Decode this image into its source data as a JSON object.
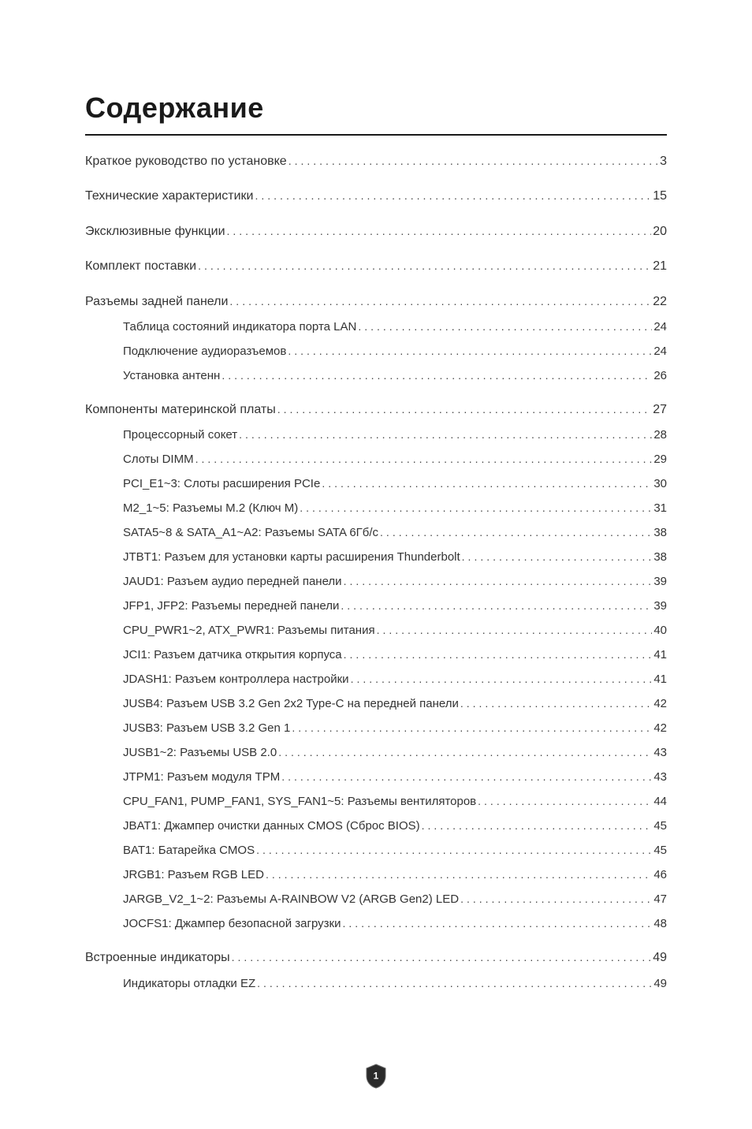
{
  "title": "Содержание",
  "pageNumber": "1",
  "colors": {
    "background": "#ffffff",
    "text": "#333333",
    "title": "#1a1a1a",
    "rule": "#1a1a1a",
    "leader": "#444444",
    "badgeFill": "#2a2a2a",
    "badgeStroke": "#6a6a6a",
    "badgeText": "#ffffff"
  },
  "typography": {
    "titleFontSize": 36,
    "titleFontWeight": 700,
    "level1FontSize": 16,
    "level2FontSize": 15,
    "level2Indent": 48
  },
  "toc": [
    {
      "level": 1,
      "label": "Краткое руководство по установке",
      "page": "3"
    },
    {
      "level": 1,
      "label": "Технические характеристики",
      "page": "15"
    },
    {
      "level": 1,
      "label": "Эксклюзивные функции",
      "page": "20"
    },
    {
      "level": 1,
      "label": "Комплект поставки",
      "page": "21"
    },
    {
      "level": 1,
      "label": "Разъемы задней панели",
      "page": "22"
    },
    {
      "level": 2,
      "label": "Таблица состояний индикатора порта LAN",
      "page": "24"
    },
    {
      "level": 2,
      "label": "Подключение аудиоразъемов",
      "page": "24"
    },
    {
      "level": 2,
      "label": "Установка антенн",
      "page": "26"
    },
    {
      "level": 1,
      "label": "Компоненты материнской платы",
      "page": "27"
    },
    {
      "level": 2,
      "label": "Процессорный сокет",
      "page": "28"
    },
    {
      "level": 2,
      "label": "Слоты DIMM",
      "page": "29"
    },
    {
      "level": 2,
      "label": "PCI_E1~3: Слоты расширения PCIe",
      "page": "30"
    },
    {
      "level": 2,
      "label": "M2_1~5: Разъемы M.2 (Ключ M)",
      "page": "31"
    },
    {
      "level": 2,
      "label": "SATA5~8 & SATA_A1~A2: Разъемы SATA 6Гб/с",
      "page": "38"
    },
    {
      "level": 2,
      "label": "JTBT1: Разъем для установки карты расширения Thunderbolt",
      "page": "38"
    },
    {
      "level": 2,
      "label": "JAUD1: Разъем аудио передней панели",
      "page": "39"
    },
    {
      "level": 2,
      "label": "JFP1, JFP2: Разъемы передней панели",
      "page": "39"
    },
    {
      "level": 2,
      "label": "CPU_PWR1~2, ATX_PWR1: Разъемы питания",
      "page": "40"
    },
    {
      "level": 2,
      "label": "JCI1: Разъем датчика открытия корпуса",
      "page": "41"
    },
    {
      "level": 2,
      "label": "JDASH1: Разъем контроллера настройки",
      "page": "41"
    },
    {
      "level": 2,
      "label": "JUSB4: Разъем USB 3.2 Gen 2x2 Type-C на передней панели",
      "page": "42"
    },
    {
      "level": 2,
      "label": "JUSB3: Разъем USB 3.2 Gen 1",
      "page": "42"
    },
    {
      "level": 2,
      "label": "JUSB1~2: Разъемы USB 2.0",
      "page": "43"
    },
    {
      "level": 2,
      "label": "JTPM1: Разъем модуля TPM",
      "page": "43"
    },
    {
      "level": 2,
      "label": "CPU_FAN1, PUMP_FAN1, SYS_FAN1~5: Разъемы вентиляторов",
      "page": "44"
    },
    {
      "level": 2,
      "label": "JBAT1: Джампер очистки данных CMOS (Сброс BIOS)",
      "page": "45"
    },
    {
      "level": 2,
      "label": "BAT1: Батарейка CMOS",
      "page": "45"
    },
    {
      "level": 2,
      "label": "JRGB1: Разъем RGB LED",
      "page": "46"
    },
    {
      "level": 2,
      "label": "JARGB_V2_1~2: Разъемы A-RAINBOW V2 (ARGB Gen2) LED",
      "page": "47"
    },
    {
      "level": 2,
      "label": "JOCFS1: Джампер безопасной загрузки",
      "page": "48"
    },
    {
      "level": 1,
      "label": "Встроенные индикаторы",
      "page": "49"
    },
    {
      "level": 2,
      "label": "Индикаторы отладки EZ",
      "page": "49"
    }
  ]
}
